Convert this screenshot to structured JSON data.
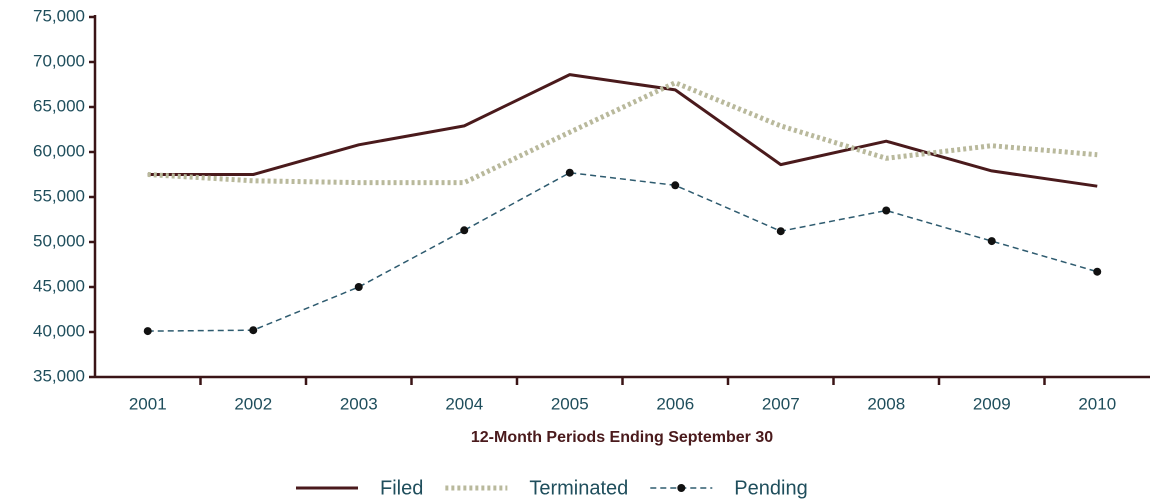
{
  "chart_data": {
    "type": "line",
    "xlabel": "12-Month Periods Ending September 30",
    "categories": [
      "2001",
      "2002",
      "2003",
      "2004",
      "2005",
      "2006",
      "2007",
      "2008",
      "2009",
      "2010"
    ],
    "series": [
      {
        "name": "Filed",
        "color": "#4a1a1c",
        "style": "solid",
        "values": [
          57500,
          57500,
          60800,
          62900,
          68600,
          66900,
          58600,
          61200,
          57900,
          56200
        ]
      },
      {
        "name": "Terminated",
        "color": "#b9b99c",
        "style": "dotted",
        "values": [
          57500,
          56800,
          56600,
          56600,
          62200,
          67700,
          62900,
          59300,
          60700,
          59700
        ]
      },
      {
        "name": "Pending",
        "color": "#2e5b6f",
        "style": "dashdot",
        "marker": "#111111",
        "values": [
          40100,
          40200,
          45000,
          51300,
          57700,
          56300,
          51200,
          53500,
          50100,
          46700
        ]
      }
    ],
    "ylim": [
      35000,
      75000
    ],
    "yticks": [
      {
        "value": 35000,
        "label": "35,000"
      },
      {
        "value": 40000,
        "label": "40,000"
      },
      {
        "value": 45000,
        "label": "45,000"
      },
      {
        "value": 50000,
        "label": "50,000"
      },
      {
        "value": 55000,
        "label": "55,000"
      },
      {
        "value": 60000,
        "label": "60,000"
      },
      {
        "value": 65000,
        "label": "65,000"
      },
      {
        "value": 70000,
        "label": "70,000"
      },
      {
        "value": 75000,
        "label": "75,000"
      }
    ],
    "grid": false,
    "legend": "bottom"
  }
}
